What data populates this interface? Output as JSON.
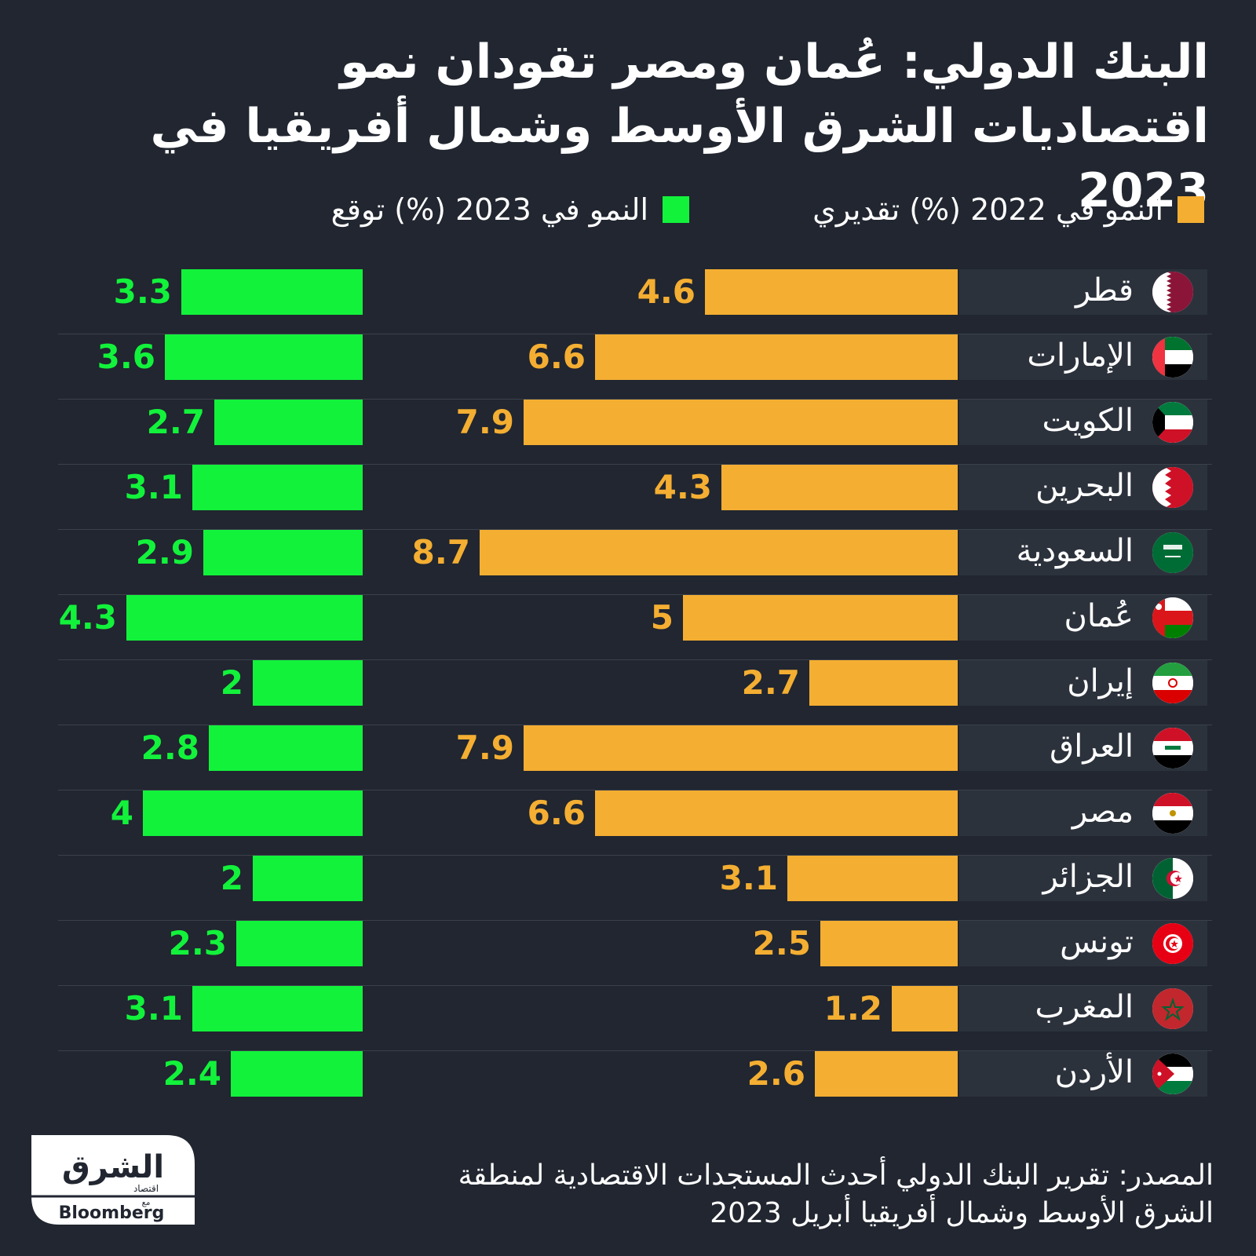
{
  "title": "البنك الدولي: عُمان ومصر تقودان نمو اقتصاديات الشرق الأوسط وشمال أفريقيا في 2023",
  "legend": {
    "series_2022": "النمو في 2022 (%) تقديري",
    "series_2023": "النمو في 2023 (%) توقع"
  },
  "colors": {
    "background": "#212630",
    "series_2022": "#f4ae32",
    "series_2023": "#12f23b"
  },
  "source": "المصدر: تقرير البنك الدولي أحدث المستجدات الاقتصادية لمنطقة الشرق الأوسط وشمال أفريقيا أبريل 2023",
  "logo": {
    "brand_ar": "الشرق",
    "sub_ar": "اقتصاد",
    "with_ar": "مع",
    "partner": "Bloomberg"
  },
  "chart_data": {
    "type": "bar",
    "orientation": "horizontal",
    "categories": [
      "قطر",
      "الإمارات",
      "الكويت",
      "البحرين",
      "السعودية",
      "عُمان",
      "إيران",
      "العراق",
      "مصر",
      "الجزائر",
      "تونس",
      "المغرب",
      "الأردن"
    ],
    "flag_icons": [
      "qatar-flag-icon",
      "uae-flag-icon",
      "kuwait-flag-icon",
      "bahrain-flag-icon",
      "saudi-flag-icon",
      "oman-flag-icon",
      "iran-flag-icon",
      "iraq-flag-icon",
      "egypt-flag-icon",
      "algeria-flag-icon",
      "tunisia-flag-icon",
      "morocco-flag-icon",
      "jordan-flag-icon"
    ],
    "series": [
      {
        "name": "النمو في 2022 (%) تقديري",
        "values": [
          4.6,
          6.6,
          7.9,
          4.3,
          8.7,
          5,
          2.7,
          7.9,
          6.6,
          3.1,
          2.5,
          1.2,
          2.6
        ],
        "labels": [
          "4.6",
          "6.6",
          "7.9",
          "4.3",
          "8.7",
          "5",
          "2.7",
          "7.9",
          "6.6",
          "3.1",
          "2.5",
          "1.2",
          "2.6"
        ]
      },
      {
        "name": "النمو في 2023 (%) توقع",
        "values": [
          3.3,
          3.6,
          2.7,
          3.1,
          2.9,
          4.3,
          2,
          2.8,
          4,
          2,
          2.3,
          3.1,
          2.4
        ],
        "labels": [
          "3.3",
          "3.6",
          "2.7",
          "3.1",
          "2.9",
          "4.3",
          "2",
          "2.8",
          "4",
          "2",
          "2.3",
          "3.1",
          "2.4"
        ]
      }
    ],
    "grid": false,
    "legend_position": "top"
  }
}
